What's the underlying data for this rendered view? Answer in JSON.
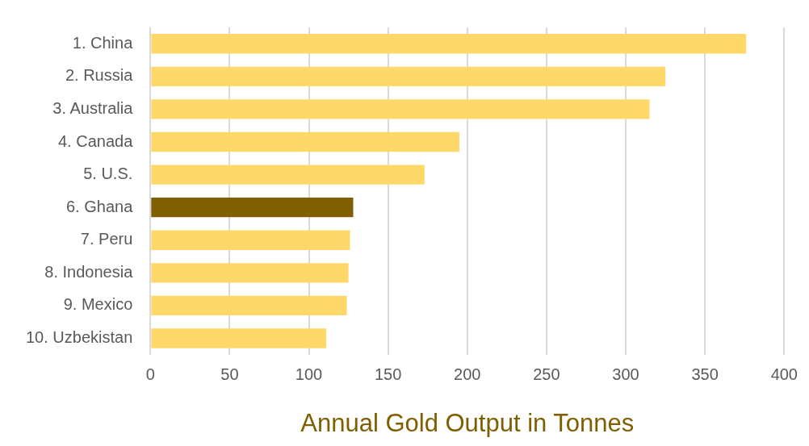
{
  "chart_data": {
    "type": "bar",
    "orientation": "horizontal",
    "xlabel": "Annual Gold Output in Tonnes",
    "categories": [
      "1. China",
      "2. Russia",
      "3. Australia",
      "4. Canada",
      "5. U.S.",
      "6. Ghana",
      "7. Peru",
      "8. Indonesia",
      "9. Mexico",
      "10. Uzbekistan"
    ],
    "values": [
      376,
      325,
      315,
      195,
      173,
      128,
      126,
      125,
      124,
      111
    ],
    "colors": [
      "#fed96a",
      "#fed96a",
      "#fed96a",
      "#fed96a",
      "#fed96a",
      "#7f5f00",
      "#fed96a",
      "#fed96a",
      "#fed96a",
      "#fed96a"
    ],
    "xlim": [
      0,
      400
    ],
    "xticks": [
      0,
      50,
      100,
      150,
      200,
      250,
      300,
      350,
      400
    ],
    "grid": "x",
    "legend": false
  }
}
